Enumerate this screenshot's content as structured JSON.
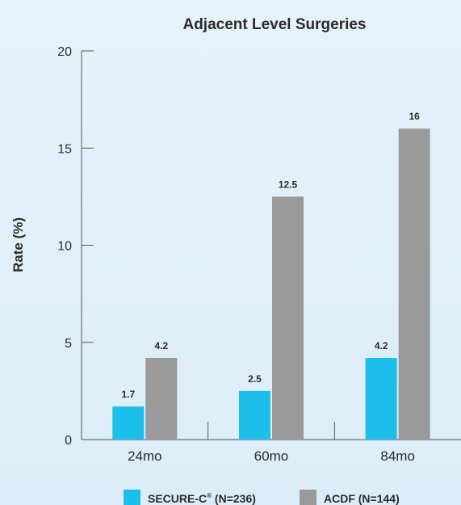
{
  "chart_data": {
    "type": "bar",
    "title": "Adjacent Level Surgeries",
    "xlabel": "",
    "ylabel": "Rate (%)",
    "ylim": [
      0,
      20
    ],
    "yticks": [
      0,
      5,
      10,
      15,
      20
    ],
    "categories": [
      "24mo",
      "60mo",
      "84mo"
    ],
    "series": [
      {
        "name": "SECURE-C",
        "name_sup": "®",
        "name_suffix": " (N=236)",
        "color": "#1bbfea",
        "values": [
          1.7,
          2.5,
          4.2
        ],
        "labels": [
          "1.7",
          "2.5",
          "4.2"
        ]
      },
      {
        "name": "ACDF (N=144)",
        "color": "#9a9a9a",
        "values": [
          4.2,
          12.5,
          16
        ],
        "labels": [
          "4.2",
          "12.5",
          "16"
        ]
      }
    ],
    "grid": false,
    "legend": "bottom"
  }
}
